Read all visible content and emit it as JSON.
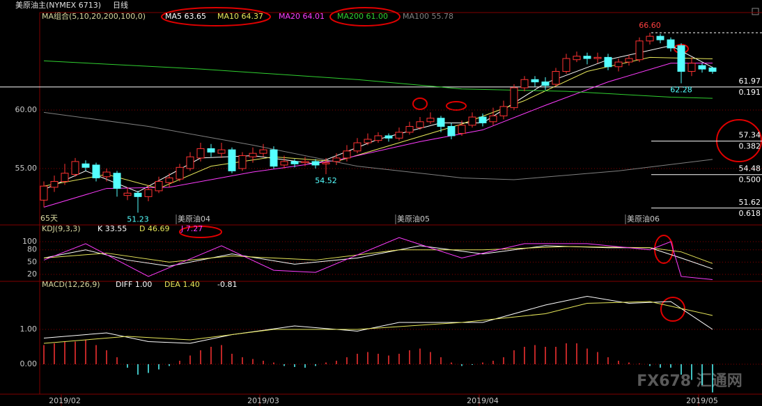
{
  "header": {
    "title": "美原油主(NYMEX 6713)",
    "period": "日线"
  },
  "chart_data": [
    {
      "type": "candlestick",
      "title": "MA组合(5,10,20,200,100,0)",
      "up_color": "#ff3232",
      "down_color": "#54ffff",
      "open": [
        52.3,
        53.4,
        53.9,
        54.5,
        55.4,
        55.3,
        54.3,
        54.6,
        52.7,
        52.9,
        52.6,
        53.1,
        53.8,
        54.1,
        55.0,
        55.9,
        56.7,
        56.3,
        56.6,
        55.0,
        56.0,
        56.3,
        56.6,
        55.3,
        55.6,
        55.5,
        55.6,
        55.4,
        55.6,
        55.9,
        56.5,
        57.2,
        57.4,
        57.8,
        57.6,
        58.1,
        58.5,
        59.0,
        59.3,
        58.6,
        58.0,
        58.7,
        59.4,
        59.0,
        59.5,
        60.2,
        61.9,
        62.6,
        62.4,
        62.2,
        63.3,
        64.3,
        64.6,
        64.4,
        64.5,
        63.7,
        64.1,
        64.3,
        65.9,
        66.3,
        66.0,
        65.5,
        63.3,
        63.8,
        63.6
      ],
      "high": [
        53.9,
        54.4,
        55.4,
        55.9,
        55.7,
        55.5,
        55.0,
        54.8,
        53.4,
        53.1,
        53.6,
        54.3,
        54.6,
        55.4,
        56.4,
        57.2,
        57.1,
        57.2,
        56.8,
        56.4,
        56.8,
        57.1,
        56.9,
        56.1,
        55.8,
        56.0,
        55.8,
        55.9,
        56.3,
        57.0,
        57.6,
        58.0,
        58.1,
        58.0,
        58.5,
        59.0,
        59.4,
        59.8,
        59.5,
        58.9,
        59.1,
        59.8,
        59.7,
        60.2,
        60.8,
        62.2,
        62.9,
        62.9,
        62.8,
        63.6,
        64.8,
        65.0,
        64.9,
        64.9,
        64.8,
        64.4,
        64.7,
        66.2,
        66.6,
        66.5,
        66.2,
        65.7,
        64.5,
        64.0,
        63.7
      ],
      "low": [
        51.7,
        53.0,
        53.6,
        54.3,
        54.8,
        53.9,
        53.9,
        52.6,
        52.3,
        51.23,
        52.2,
        52.9,
        53.4,
        53.9,
        54.8,
        55.6,
        56.0,
        55.9,
        54.6,
        54.8,
        55.5,
        56.0,
        55.0,
        55.0,
        55.1,
        55.2,
        55.0,
        54.52,
        55.3,
        55.6,
        56.3,
        57.0,
        57.2,
        57.3,
        57.4,
        57.9,
        58.3,
        58.8,
        58.1,
        57.5,
        57.8,
        58.5,
        58.6,
        58.7,
        59.2,
        60.0,
        61.6,
        62.0,
        61.7,
        62.0,
        63.1,
        64.1,
        63.9,
        64.0,
        63.4,
        63.3,
        63.8,
        64.1,
        65.6,
        65.7,
        65.0,
        62.28,
        62.9,
        63.2,
        63.1
      ],
      "close": [
        53.5,
        53.9,
        54.6,
        55.6,
        55.1,
        54.2,
        54.7,
        53.3,
        52.9,
        52.6,
        53.2,
        53.9,
        54.2,
        55.1,
        56.0,
        56.7,
        56.4,
        56.6,
        54.8,
        56.1,
        56.3,
        56.6,
        55.2,
        55.6,
        55.4,
        55.6,
        55.3,
        55.5,
        55.9,
        56.5,
        57.2,
        57.5,
        57.8,
        57.6,
        58.1,
        58.6,
        59.0,
        59.3,
        58.6,
        57.8,
        58.7,
        59.4,
        58.9,
        59.5,
        60.3,
        61.9,
        62.6,
        62.4,
        62.1,
        63.3,
        64.4,
        64.6,
        64.4,
        64.5,
        63.7,
        64.1,
        64.4,
        65.9,
        66.3,
        66.0,
        65.3,
        63.3,
        64.0,
        63.5,
        63.3
      ],
      "ylim": [
        50.24,
        68.21
      ],
      "yticks": [
        {
          "value": 55,
          "label": "55.00"
        },
        {
          "value": 60,
          "label": "60.00"
        }
      ],
      "grid": true,
      "series": [
        {
          "name": "MA5",
          "label": "MA5 63.65",
          "color": "#ffffff",
          "x": [
            0,
            4,
            9,
            15,
            20,
            26,
            32,
            38,
            42,
            48,
            54,
            60,
            64
          ],
          "values": [
            53.2,
            54.8,
            53.0,
            55.9,
            56.1,
            55.4,
            57.5,
            58.9,
            58.9,
            62.3,
            64.3,
            65.5,
            63.65
          ]
        },
        {
          "name": "MA10",
          "label": "MA10 64.37",
          "color": "#e8e85a",
          "x": [
            0,
            6,
            11,
            16,
            22,
            28,
            34,
            40,
            46,
            52,
            58,
            64
          ],
          "values": [
            53.5,
            54.5,
            53.3,
            55.2,
            56.0,
            55.6,
            57.2,
            58.8,
            60.8,
            63.3,
            64.5,
            64.37
          ]
        },
        {
          "name": "MA20",
          "label": "MA20 64.01",
          "color": "#ff3cff",
          "x": [
            0,
            6,
            12,
            20,
            28,
            36,
            42,
            48,
            54,
            60,
            64
          ],
          "values": [
            51.7,
            53.3,
            53.4,
            54.7,
            55.7,
            57.3,
            58.3,
            60.4,
            62.4,
            64.0,
            64.01
          ]
        },
        {
          "name": "MA200",
          "label": "MA200 61.00",
          "color": "#30d030",
          "x": [
            0,
            15,
            30,
            40,
            50,
            60,
            64
          ],
          "values": [
            64.2,
            63.5,
            62.6,
            61.8,
            61.6,
            61.1,
            61.0
          ]
        },
        {
          "name": "MA100",
          "label": "MA100 55.78",
          "color": "#808080",
          "x": [
            0,
            10,
            20,
            30,
            40,
            45,
            55,
            64
          ],
          "values": [
            59.8,
            58.6,
            57.0,
            55.2,
            54.2,
            54.05,
            54.8,
            55.78
          ]
        }
      ],
      "fib": [
        {
          "price": 61.97,
          "ratio": "0.191"
        },
        {
          "price": 57.34,
          "ratio": "0.382"
        },
        {
          "price": 54.48,
          "ratio": "0.500"
        },
        {
          "price": 51.62,
          "ratio": "0.618"
        }
      ],
      "top_level": 66.6,
      "annotations": [
        {
          "index": 58,
          "value": 66.6,
          "label": "66.60",
          "color": "#ff4040"
        },
        {
          "index": 61,
          "value": 62.28,
          "label": "62.28",
          "color": "#54ffff"
        },
        {
          "index": 27,
          "value": 54.52,
          "label": "54.52",
          "color": "#54ffff"
        },
        {
          "index": 9,
          "value": 51.23,
          "label": "51.23",
          "color": "#54ffff"
        }
      ],
      "day_count": "65天",
      "contract_labels": [
        {
          "index": 14,
          "label": "美原油04"
        },
        {
          "index": 35,
          "label": "美原油05"
        },
        {
          "index": 57,
          "label": "美原油06"
        }
      ]
    },
    {
      "type": "line",
      "title": "KDJ(9,3,3)",
      "ylim": [
        4.7,
        137.4
      ],
      "yticks": [
        20,
        50,
        80,
        100
      ],
      "grid": true,
      "series": [
        {
          "name": "K",
          "label": "K 33.55",
          "color": "#ffffff",
          "x": [
            0,
            4,
            8,
            12,
            18,
            24,
            30,
            36,
            42,
            48,
            54,
            58,
            61,
            64
          ],
          "values": [
            60,
            80,
            55,
            40,
            70,
            45,
            60,
            90,
            70,
            90,
            85,
            85,
            60,
            33.55
          ]
        },
        {
          "name": "D",
          "label": "D 46.69",
          "color": "#e8e85a",
          "x": [
            0,
            6,
            12,
            18,
            26,
            34,
            42,
            50,
            58,
            61,
            64
          ],
          "values": [
            60,
            72,
            50,
            65,
            55,
            80,
            80,
            88,
            85,
            75,
            46.69
          ]
        },
        {
          "name": "J",
          "label": "J 7.27",
          "color": "#ff3cff",
          "x": [
            0,
            4,
            10,
            17,
            22,
            26,
            34,
            40,
            46,
            52,
            58,
            60,
            61,
            64
          ],
          "values": [
            55,
            95,
            15,
            90,
            30,
            25,
            110,
            60,
            95,
            95,
            80,
            100,
            15,
            7.27
          ]
        }
      ]
    },
    {
      "type": "macd",
      "title": "MACD(12,26,9)",
      "ylim": [
        -0.84,
        2.36
      ],
      "yticks": [
        {
          "value": 0,
          "label": "0.00"
        },
        {
          "value": 1,
          "label": "1.00"
        }
      ],
      "grid": true,
      "up_color": "#ff3232",
      "down_color": "#54ffff",
      "hist_label": "-0.81",
      "histogram": [
        0.55,
        0.6,
        0.65,
        0.65,
        0.7,
        0.55,
        0.4,
        0.2,
        -0.1,
        -0.3,
        -0.25,
        -0.15,
        -0.05,
        0.1,
        0.25,
        0.4,
        0.5,
        0.55,
        0.3,
        0.2,
        0.15,
        0.1,
        0.05,
        -0.05,
        -0.08,
        -0.1,
        -0.05,
        0.05,
        0.1,
        0.2,
        0.3,
        0.35,
        0.3,
        0.25,
        0.3,
        0.4,
        0.45,
        0.35,
        0.2,
        0.05,
        -0.05,
        -0.02,
        0.05,
        0.1,
        0.2,
        0.4,
        0.5,
        0.55,
        0.5,
        0.5,
        0.6,
        0.6,
        0.45,
        0.35,
        0.2,
        0.1,
        0.05,
        0.02,
        -0.05,
        -0.1,
        -0.1,
        -0.3,
        -0.45,
        -0.6,
        -0.81
      ],
      "series": [
        {
          "name": "DIFF",
          "label": "DIFF 1.00",
          "color": "#ffffff",
          "x": [
            0,
            6,
            10,
            14,
            18,
            24,
            30,
            34,
            42,
            48,
            52,
            56,
            60,
            64
          ],
          "values": [
            0.75,
            0.9,
            0.65,
            0.6,
            0.85,
            1.1,
            0.95,
            1.2,
            1.2,
            1.7,
            1.95,
            1.75,
            1.8,
            1.0
          ]
        },
        {
          "name": "DEA",
          "label": "DEA 1.40",
          "color": "#e8e85a",
          "x": [
            0,
            8,
            14,
            22,
            30,
            40,
            48,
            52,
            58,
            64
          ],
          "values": [
            0.6,
            0.8,
            0.7,
            1.0,
            1.0,
            1.2,
            1.45,
            1.75,
            1.8,
            1.4
          ]
        }
      ],
      "dates": [
        {
          "index": 3,
          "label": "2019/02"
        },
        {
          "index": 22,
          "label": "2019/03"
        },
        {
          "index": 43,
          "label": "2019/04"
        },
        {
          "index": 64,
          "label": "2019/05"
        }
      ]
    }
  ],
  "watermark": "FX678 汇通网"
}
